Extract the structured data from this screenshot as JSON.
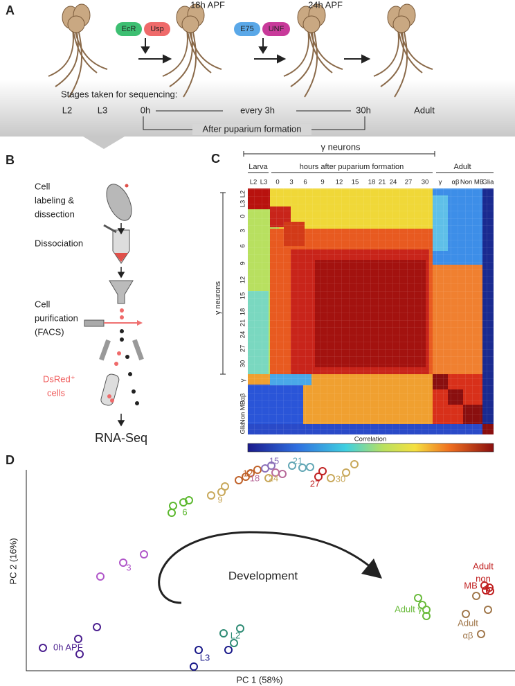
{
  "panel_a": {
    "label": "A",
    "stages_top": [
      "18h APF",
      "24h APF"
    ],
    "factors": [
      "EcR",
      "Usp",
      "E75",
      "UNF"
    ],
    "sequencing_title": "Stages taken for sequencing:",
    "stages": [
      "L2",
      "L3",
      "0h",
      "every 3h",
      "30h",
      "Adult"
    ],
    "bracket_label": "After puparium formation"
  },
  "panel_b": {
    "label": "B",
    "steps": [
      [
        "Cell",
        "labeling &",
        "dissection"
      ],
      [
        "Dissociation"
      ],
      [
        "Cell",
        "purification",
        "(FACS)"
      ]
    ],
    "sorted": [
      "DsRed⁺",
      "cells"
    ],
    "output": "RNA-Seq"
  },
  "panel_c": {
    "label": "C",
    "group_top": "γ neurons",
    "larva": "Larva",
    "hours": "hours after puparium formation",
    "adult": "Adult",
    "columns": [
      "L2",
      "L3",
      "0",
      "3",
      "6",
      "9",
      "12",
      "15",
      "18",
      "21",
      "24",
      "27",
      "30",
      "γ",
      "αβ",
      "Non MB",
      "Glia"
    ],
    "row_group": "γ neurons",
    "colorbar_label": "Correlation"
  },
  "panel_d": {
    "label": "D",
    "x_label": "PC 1 (58%)",
    "y_label": "PC 2 (16%)",
    "arrow_label": "Development",
    "point_labels": [
      "0h APF",
      "3",
      "6",
      "9",
      "12",
      "15",
      "18",
      "21",
      "24",
      "27",
      "30",
      "L2",
      "L3",
      "Adult γ"
    ],
    "adult_non_mb": [
      "Adult",
      "non",
      "MB"
    ],
    "adult_ab": [
      "Adult",
      "αβ"
    ]
  }
}
